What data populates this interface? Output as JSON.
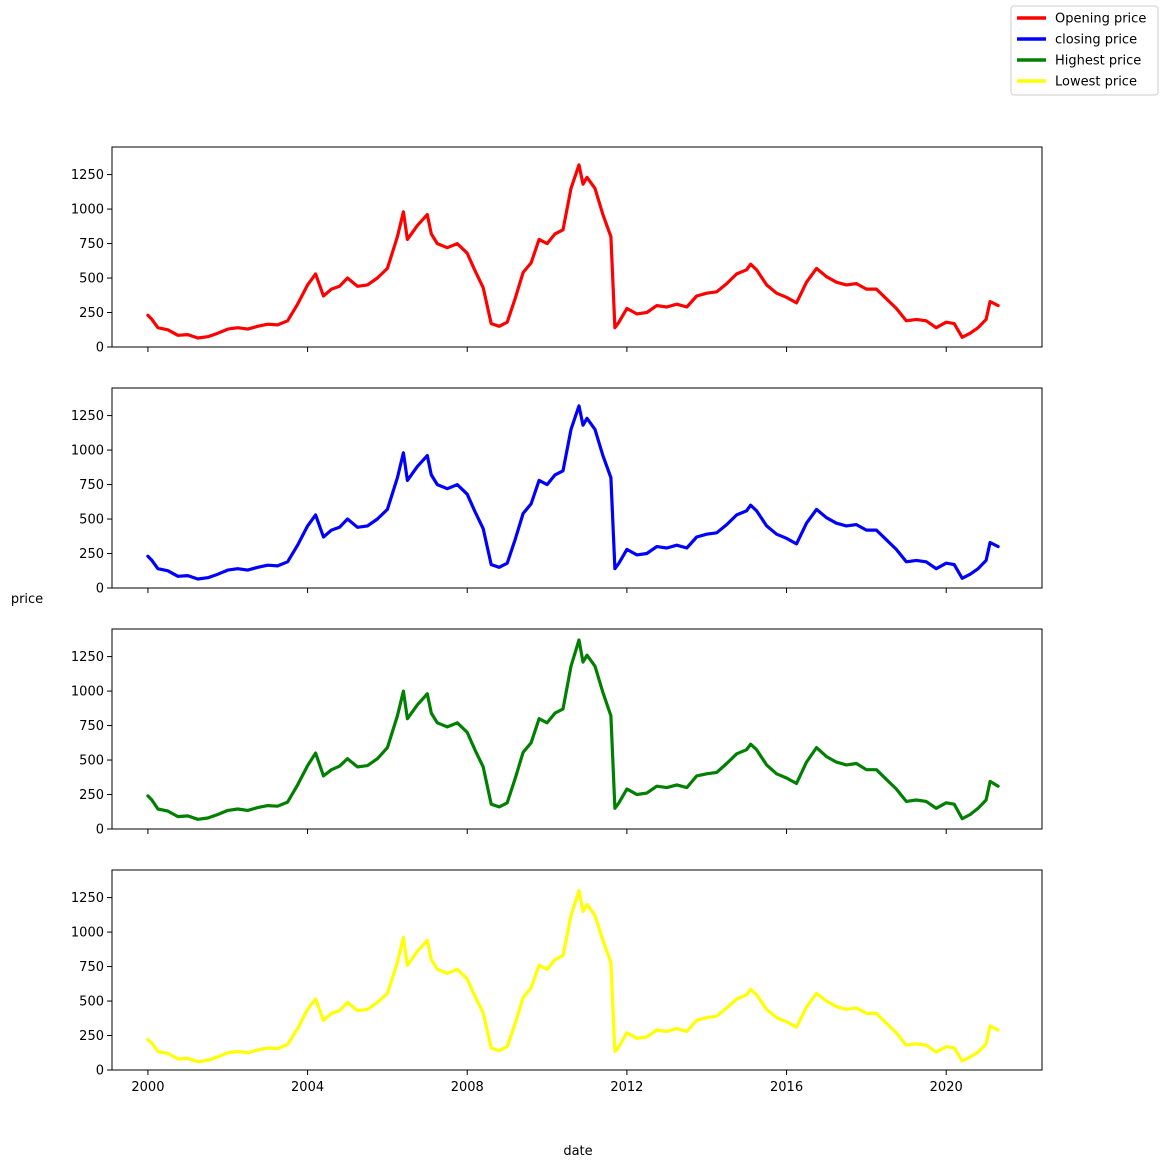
{
  "chart_data": {
    "type": "line",
    "xlabel": "date",
    "ylabel": "price",
    "xlim": [
      1999.1,
      2022.4
    ],
    "ylim": [
      0,
      1450
    ],
    "x_ticks": [
      2000,
      2004,
      2008,
      2012,
      2016,
      2020
    ],
    "x_tick_labels": [
      "2000",
      "2004",
      "2008",
      "2012",
      "2016",
      "2020"
    ],
    "y_ticks": [
      0,
      250,
      500,
      750,
      1000,
      1250
    ],
    "y_tick_labels": [
      "0",
      "250",
      "500",
      "750",
      "1000",
      "1250"
    ],
    "legend_position": "top-right",
    "x": [
      2000.0,
      2000.1,
      2000.25,
      2000.5,
      2000.75,
      2001.0,
      2001.25,
      2001.5,
      2001.75,
      2002.0,
      2002.25,
      2002.5,
      2002.75,
      2003.0,
      2003.25,
      2003.5,
      2003.75,
      2004.0,
      2004.2,
      2004.4,
      2004.6,
      2004.8,
      2005.0,
      2005.25,
      2005.5,
      2005.75,
      2006.0,
      2006.25,
      2006.4,
      2006.5,
      2006.75,
      2007.0,
      2007.1,
      2007.25,
      2007.5,
      2007.75,
      2008.0,
      2008.2,
      2008.4,
      2008.6,
      2008.8,
      2009.0,
      2009.2,
      2009.4,
      2009.6,
      2009.8,
      2010.0,
      2010.2,
      2010.4,
      2010.6,
      2010.8,
      2010.9,
      2011.0,
      2011.2,
      2011.4,
      2011.6,
      2011.7,
      2011.75,
      2011.8,
      2012.0,
      2012.25,
      2012.5,
      2012.75,
      2013.0,
      2013.25,
      2013.5,
      2013.75,
      2014.0,
      2014.25,
      2014.5,
      2014.75,
      2015.0,
      2015.1,
      2015.25,
      2015.5,
      2015.75,
      2016.0,
      2016.25,
      2016.5,
      2016.75,
      2017.0,
      2017.25,
      2017.5,
      2017.75,
      2018.0,
      2018.25,
      2018.5,
      2018.75,
      2019.0,
      2019.25,
      2019.5,
      2019.75,
      2020.0,
      2020.2,
      2020.4,
      2020.6,
      2020.8,
      2021.0,
      2021.1,
      2021.3
    ],
    "series": [
      {
        "name": "Opening price",
        "color": "#ff0000",
        "values": [
          230,
          200,
          140,
          125,
          85,
          90,
          65,
          75,
          100,
          130,
          140,
          130,
          150,
          165,
          160,
          190,
          310,
          450,
          530,
          370,
          420,
          440,
          500,
          440,
          450,
          500,
          570,
          800,
          980,
          780,
          880,
          960,
          820,
          750,
          720,
          750,
          680,
          550,
          430,
          170,
          150,
          180,
          350,
          540,
          610,
          780,
          750,
          820,
          850,
          1150,
          1320,
          1180,
          1230,
          1150,
          960,
          800,
          140,
          160,
          180,
          280,
          240,
          250,
          300,
          290,
          310,
          290,
          370,
          390,
          400,
          460,
          530,
          560,
          600,
          560,
          450,
          390,
          360,
          320,
          470,
          570,
          510,
          470,
          450,
          460,
          420,
          420,
          350,
          280,
          190,
          200,
          190,
          140,
          180,
          170,
          70,
          100,
          140,
          200,
          330,
          300
        ]
      },
      {
        "name": "closing price",
        "color": "#0000ff",
        "values": [
          230,
          200,
          140,
          125,
          85,
          90,
          65,
          75,
          100,
          130,
          140,
          130,
          150,
          165,
          160,
          190,
          310,
          450,
          530,
          370,
          420,
          440,
          500,
          440,
          450,
          500,
          570,
          800,
          980,
          780,
          880,
          960,
          820,
          750,
          720,
          750,
          680,
          550,
          430,
          170,
          150,
          180,
          350,
          540,
          610,
          780,
          750,
          820,
          850,
          1150,
          1320,
          1180,
          1230,
          1150,
          960,
          800,
          140,
          160,
          180,
          280,
          240,
          250,
          300,
          290,
          310,
          290,
          370,
          390,
          400,
          460,
          530,
          560,
          600,
          560,
          450,
          390,
          360,
          320,
          470,
          570,
          510,
          470,
          450,
          460,
          420,
          420,
          350,
          280,
          190,
          200,
          190,
          140,
          180,
          170,
          70,
          100,
          140,
          200,
          330,
          300
        ]
      },
      {
        "name": "Highest price",
        "color": "#008000",
        "values": [
          240,
          210,
          145,
          130,
          90,
          95,
          70,
          80,
          105,
          135,
          145,
          135,
          155,
          170,
          165,
          195,
          320,
          460,
          550,
          385,
          430,
          455,
          510,
          450,
          460,
          510,
          590,
          820,
          1000,
          800,
          900,
          980,
          840,
          770,
          740,
          770,
          700,
          570,
          450,
          180,
          160,
          190,
          365,
          555,
          625,
          800,
          770,
          840,
          870,
          1180,
          1370,
          1210,
          1260,
          1180,
          990,
          820,
          150,
          170,
          190,
          290,
          250,
          260,
          310,
          300,
          320,
          300,
          385,
          400,
          410,
          475,
          545,
          575,
          615,
          575,
          465,
          400,
          370,
          330,
          485,
          590,
          525,
          485,
          465,
          475,
          430,
          430,
          360,
          290,
          200,
          210,
          200,
          150,
          190,
          180,
          75,
          105,
          150,
          210,
          345,
          310
        ]
      },
      {
        "name": "Lowest price",
        "color": "#ffff00",
        "values": [
          220,
          195,
          135,
          120,
          80,
          85,
          60,
          70,
          95,
          125,
          135,
          125,
          145,
          160,
          155,
          185,
          300,
          440,
          515,
          360,
          410,
          430,
          490,
          430,
          440,
          490,
          555,
          780,
          960,
          760,
          860,
          940,
          800,
          730,
          700,
          730,
          660,
          530,
          415,
          160,
          140,
          170,
          335,
          525,
          595,
          760,
          730,
          800,
          830,
          1120,
          1300,
          1150,
          1200,
          1120,
          940,
          780,
          135,
          150,
          170,
          270,
          230,
          240,
          290,
          280,
          300,
          280,
          360,
          380,
          390,
          450,
          515,
          545,
          585,
          545,
          440,
          380,
          350,
          310,
          455,
          555,
          500,
          460,
          440,
          450,
          410,
          410,
          340,
          270,
          180,
          190,
          180,
          130,
          170,
          160,
          65,
          95,
          130,
          190,
          320,
          290
        ]
      }
    ]
  }
}
